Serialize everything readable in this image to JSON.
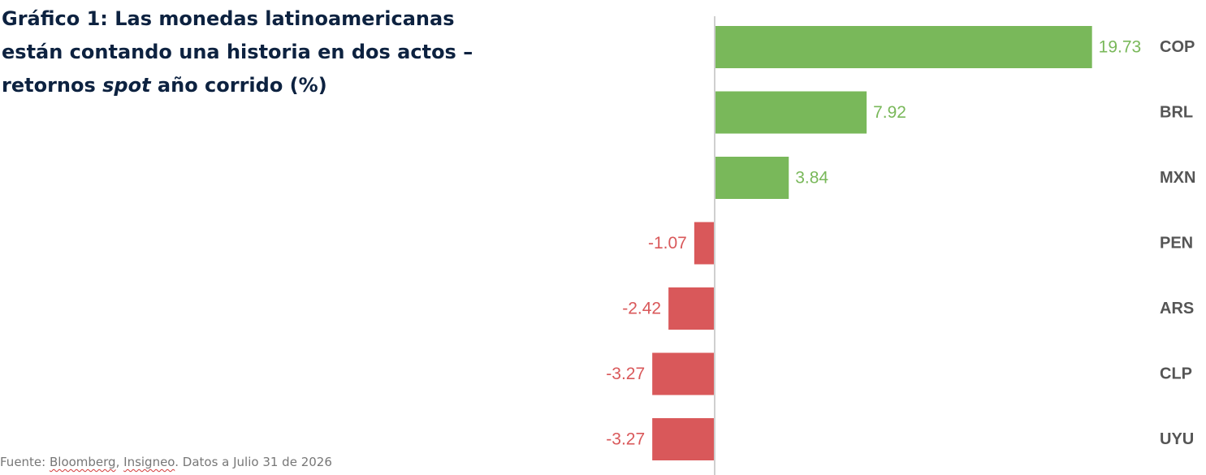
{
  "title": {
    "part1": "Gráfico 1: Las monedas latinoamericanas están contando una historia en dos actos – retornos ",
    "italic": "spot",
    "part2": " año corrido (%)"
  },
  "source": {
    "prefix": "Fuente: ",
    "bloomberg": "Bloomberg",
    "sep": ", ",
    "insigneo": "Insigneo",
    "suffix": ". Datos a Julio 31 de 2026"
  },
  "colors": {
    "positive": "#79b85a",
    "negative": "#d9585a",
    "axis": "#cfcfcf",
    "title": "#0d2240"
  },
  "chart_data": {
    "type": "bar",
    "orientation": "horizontal",
    "title": "Gráfico 1: Las monedas latinoamericanas están contando una historia en dos actos – retornos spot año corrido (%)",
    "categories": [
      "COP",
      "BRL",
      "MXN",
      "PEN",
      "ARS",
      "CLP",
      "UYU"
    ],
    "values": [
      19.73,
      7.92,
      3.84,
      -1.07,
      -2.42,
      -3.27,
      -3.27
    ],
    "value_labels": [
      "19.73",
      "7.92",
      "3.84",
      "-1.07",
      "-2.42",
      "-3.27",
      "-3.27"
    ],
    "xlabel": "",
    "ylabel": "",
    "grid": false,
    "legend": "none"
  }
}
